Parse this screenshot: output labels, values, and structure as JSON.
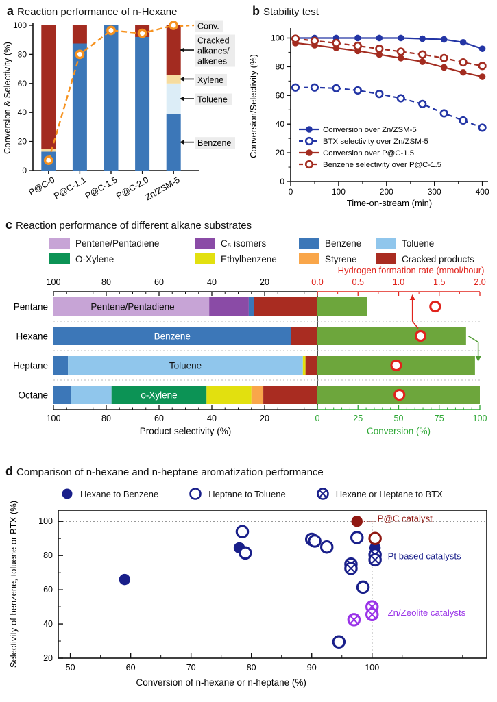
{
  "panels": {
    "a": {
      "label": "a",
      "title": "Reaction performance of n-Hexane"
    },
    "b": {
      "label": "b",
      "title": "Stability test"
    },
    "c": {
      "label": "c",
      "title": "Reaction performance of different alkane substrates"
    },
    "d": {
      "label": "d",
      "title": "Comparison of n-hexane and n-heptane aromatization performance"
    }
  },
  "chart_data": [
    {
      "id": "a",
      "type": "bar",
      "title": "Reaction performance of n-Hexane",
      "ylabel": "Conversion & Selectivity (%)",
      "ylim": [
        0,
        100
      ],
      "yticks": [
        0,
        20,
        40,
        60,
        80,
        100
      ],
      "categories": [
        "P@C-0",
        "P@C-1.1",
        "P@C-1.5",
        "P@C-2.0",
        "Zn/ZSM-5"
      ],
      "series": [
        {
          "name": "Benzene",
          "color": "#3c77b8",
          "values": [
            13,
            87.5,
            100,
            92,
            39
          ]
        },
        {
          "name": "Toluene",
          "color": "#dcedf7",
          "values": [
            0,
            0,
            0,
            0,
            21
          ]
        },
        {
          "name": "Xylene",
          "color": "#f6dc9f",
          "values": [
            2,
            0,
            0,
            0,
            6
          ]
        },
        {
          "name": "Cracked alkanes/alkenes",
          "color": "#a32b20",
          "values": [
            85,
            12.5,
            0,
            8,
            34
          ]
        }
      ],
      "line_series": {
        "name": "Conv.",
        "color": "#f6921f",
        "values": [
          7,
          80,
          96.5,
          94.5,
          100
        ]
      },
      "annotations": [
        {
          "lines": [
            "Conv."
          ],
          "value": 100,
          "kind": "conv",
          "w": 40
        },
        {
          "lines": [
            "Cracked",
            "alkanes/",
            "alkenes"
          ],
          "value": 83,
          "kind": "arrow",
          "w": 58
        },
        {
          "lines": [
            "Xylene"
          ],
          "value": 63,
          "kind": "arrow",
          "w": 46
        },
        {
          "lines": [
            "Toluene"
          ],
          "value": 49.5,
          "kind": "arrow",
          "w": 54
        },
        {
          "lines": [
            "Benzene"
          ],
          "value": 19.5,
          "kind": "arrow",
          "w": 58
        }
      ]
    },
    {
      "id": "b",
      "type": "line",
      "title": "Stability test",
      "xlabel": "Time-on-stream (min)",
      "ylabel": "Conversion/Selectivity (%)",
      "xlim": [
        0,
        412
      ],
      "ylim": [
        0,
        105
      ],
      "xticks": [
        0,
        100,
        200,
        300,
        400
      ],
      "yticks": [
        0,
        20,
        40,
        60,
        80,
        100
      ],
      "x": [
        10,
        50,
        95,
        140,
        185,
        230,
        275,
        320,
        360,
        400
      ],
      "series": [
        {
          "name": "Conversion over Zn/ZSM-5",
          "color": "#2335a5",
          "style": "solid",
          "marker": "filled",
          "values": [
            100,
            100,
            100,
            100,
            100,
            100,
            99.5,
            99,
            97,
            92.5
          ]
        },
        {
          "name": "BTX selectivity over Zn/ZSM-5",
          "color": "#2335a5",
          "style": "dashed",
          "marker": "open",
          "values": [
            65.5,
            65.5,
            65,
            63.5,
            61,
            58,
            54,
            47.5,
            42.5,
            37.5
          ]
        },
        {
          "name": "Conversion over P@C-1.5",
          "color": "#a32c20",
          "style": "solid",
          "marker": "filled",
          "values": [
            96.5,
            95,
            93,
            91,
            88.5,
            86,
            83.5,
            79.5,
            76,
            73
          ]
        },
        {
          "name": "Benzene selectivity over P@C-1.5",
          "color": "#a32c20",
          "style": "dashed",
          "marker": "open",
          "values": [
            99.5,
            98,
            96.5,
            94.5,
            92.5,
            90.5,
            88.5,
            86,
            83,
            80.5
          ]
        }
      ]
    },
    {
      "id": "c",
      "type": "bar-dual-horizontal",
      "title": "Reaction performance of different alkane substrates",
      "categories": [
        "Pentane",
        "Hexane",
        "Heptane",
        "Octane"
      ],
      "legend": [
        {
          "label": "Pentene/Pentadiene",
          "color": "#c7a4d6"
        },
        {
          "label": "C₅ isomers",
          "color": "#8a4ba6"
        },
        {
          "label": "Benzene",
          "color": "#3c77b8"
        },
        {
          "label": "Toluene",
          "color": "#90c6ec"
        },
        {
          "label": "O-Xylene",
          "color": "#0c9355"
        },
        {
          "label": "Ethylbenzene",
          "color": "#e2e00f"
        },
        {
          "label": "Styrene",
          "color": "#f9a64a"
        },
        {
          "label": "Cracked products",
          "color": "#a92c21"
        }
      ],
      "selectivity": {
        "xlabel": "Product selectivity (%)",
        "xticks": [
          100,
          80,
          60,
          40,
          20
        ],
        "series": [
          {
            "name": "Pentene/Pentadiene",
            "color": "#c7a4d6",
            "values": [
              59,
              0,
              0,
              0
            ]
          },
          {
            "name": "C₅ isomers",
            "color": "#8a4ba6",
            "values": [
              15,
              0,
              0,
              0
            ]
          },
          {
            "name": "Benzene",
            "color": "#3c77b8",
            "values": [
              2,
              90,
              5.5,
              6.5
            ]
          },
          {
            "name": "Toluene",
            "color": "#90c6ec",
            "values": [
              0,
              0,
              89,
              15.5
            ]
          },
          {
            "name": "O-Xylene",
            "color": "#0c9355",
            "values": [
              0,
              0,
              0,
              36
            ]
          },
          {
            "name": "Ethylbenzene",
            "color": "#e2e00f",
            "values": [
              0,
              0,
              1,
              17
            ]
          },
          {
            "name": "Styrene",
            "color": "#f9a64a",
            "values": [
              0,
              0,
              0,
              4.5
            ]
          },
          {
            "name": "Cracked products",
            "color": "#a92c21",
            "values": [
              24,
              10,
              4.5,
              20.5
            ]
          }
        ],
        "bar_labels": [
          {
            "row": 0,
            "text": "Pentene/Pentadiene",
            "color": "#111111",
            "at": 70
          },
          {
            "row": 1,
            "text": "Benzene",
            "color": "#ffffff",
            "at": 55
          },
          {
            "row": 2,
            "text": "Toluene",
            "color": "#111111",
            "at": 50
          },
          {
            "row": 3,
            "text": "o-Xylene",
            "color": "#ffffff",
            "at": 60
          }
        ]
      },
      "conversion": {
        "xlabel": "Conversion (%)",
        "axis_color": "#2fa836",
        "bar_color": "#6da63c",
        "xticks": [
          0,
          25,
          50,
          75,
          100
        ],
        "values": [
          30.5,
          91.5,
          97,
          100
        ]
      },
      "hydrogen": {
        "xlabel": "Hydrogen formation rate (mmol/hour)",
        "axis_color": "#e0231c",
        "xlim": [
          0,
          2
        ],
        "xticks": [
          "0.0",
          "0.5",
          "1.0",
          "1.5",
          "2.0"
        ],
        "values": [
          1.45,
          1.27,
          0.97,
          1.01
        ]
      }
    },
    {
      "id": "d",
      "type": "scatter",
      "title": "Comparison of n-hexane and n-heptane aromatization performance",
      "xlabel": "Conversion of n-hexane or n-heptane (%)",
      "ylabel": "Selectivity of benzene, toluene or BTX (%)",
      "xlim": [
        48,
        119
      ],
      "ylim": [
        20,
        106.5
      ],
      "xticks": [
        50,
        60,
        70,
        80,
        90,
        100
      ],
      "yticks": [
        20,
        40,
        60,
        80,
        100
      ],
      "legend": [
        {
          "label": "Hexane to Benzene",
          "marker": "filled",
          "color": "#191f8a"
        },
        {
          "label": "Heptane to Toluene",
          "marker": "open",
          "color": "#191f8a"
        },
        {
          "label": "Hexane or Heptane to BTX",
          "marker": "crossed",
          "color": "#191f8a"
        }
      ],
      "series": [
        {
          "name": "Hexane to Benzene",
          "marker": "filled",
          "color": "#191f8a",
          "points": [
            [
              59,
              66
            ],
            [
              78,
              84.5
            ],
            [
              100.5,
              84.5
            ]
          ]
        },
        {
          "name": "Heptane to Toluene",
          "marker": "open",
          "color": "#191f8a",
          "points": [
            [
              78.5,
              94
            ],
            [
              79,
              81.5
            ],
            [
              90,
              89.5
            ],
            [
              90.5,
              88.5
            ],
            [
              92.5,
              85
            ],
            [
              97.5,
              90.5
            ],
            [
              98.5,
              61.5
            ],
            [
              94.5,
              29.5
            ]
          ]
        },
        {
          "name": "Hexane or Heptane to BTX",
          "marker": "crossed",
          "color": "#191f8a",
          "points": [
            [
              96.5,
              75
            ],
            [
              96.5,
              72.5
            ],
            [
              100.5,
              80.5
            ],
            [
              100.5,
              77.5
            ]
          ]
        },
        {
          "name": "Zn/Zeolite catalysts",
          "marker": "crossed",
          "color": "#9a33e8",
          "points": [
            [
              97,
              42.5
            ],
            [
              100,
              50
            ],
            [
              100,
              45.5
            ]
          ]
        },
        {
          "name": "P@C catalyst",
          "marker": "filled",
          "color": "#901812",
          "points": [
            [
              97.5,
              100
            ]
          ]
        },
        {
          "name": "P@C catalyst benchmark",
          "marker": "open",
          "color": "#901812",
          "points": [
            [
              100.5,
              90
            ]
          ]
        }
      ],
      "annotations": [
        {
          "text": "P@C catalyst",
          "color": "#901812",
          "x": 100.9,
          "y": 101.5
        },
        {
          "text": "Pt based catalysts",
          "color": "#191f8a",
          "x": 102.6,
          "y": 79.5
        },
        {
          "text": "Zn/Zeolite catalysts",
          "color": "#9a33e8",
          "x": 102.6,
          "y": 46.5
        }
      ],
      "reference_lines": {
        "h": 100,
        "v": 100
      }
    }
  ]
}
